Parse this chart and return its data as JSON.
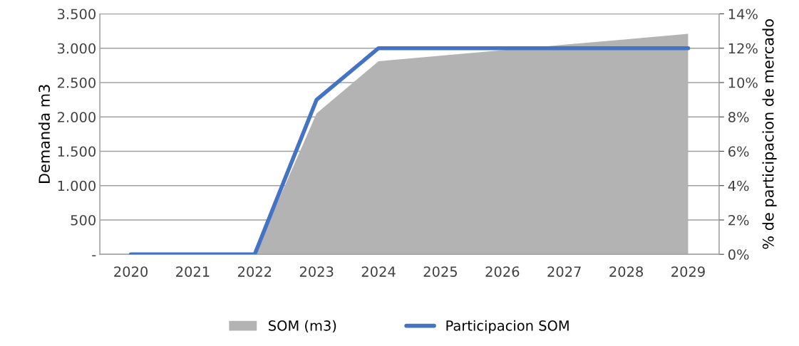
{
  "chart_data": {
    "type": "area",
    "categories": [
      "2020",
      "2021",
      "2022",
      "2023",
      "2024",
      "2025",
      "2026",
      "2027",
      "2028",
      "2029"
    ],
    "series": [
      {
        "name": "SOM (m3)",
        "color": "#b3b3b3",
        "values": [
          0,
          0,
          0,
          2050,
          2810,
          2890,
          2970,
          3050,
          3130,
          3210
        ]
      },
      {
        "name": "Participacion SOM",
        "type": "line",
        "axis": "y2",
        "color": "#4472c4",
        "values": [
          0,
          0,
          0,
          9,
          12,
          12,
          12,
          12,
          12,
          12
        ]
      }
    ],
    "ylabel": "Demanda m3",
    "y2label": "% de participacion de mercado",
    "ylim": [
      0,
      3500
    ],
    "yticks": [
      {
        "value": 0,
        "label": "-"
      },
      500,
      {
        "value": 1000,
        "label": "1.000"
      },
      {
        "value": 1500,
        "label": "1.500"
      },
      {
        "value": 2000,
        "label": "2.000"
      },
      {
        "value": 2500,
        "label": "2.500"
      },
      {
        "value": 3000,
        "label": "3.000"
      },
      {
        "value": 3500,
        "label": "3.500"
      }
    ],
    "y2lim": [
      0,
      14
    ],
    "y2ticks": [
      {
        "value": 0,
        "label": "0%"
      },
      {
        "value": 2,
        "label": "2%"
      },
      {
        "value": 4,
        "label": "4%"
      },
      {
        "value": 6,
        "label": "6%"
      },
      {
        "value": 8,
        "label": "8%"
      },
      {
        "value": 10,
        "label": "10%"
      },
      {
        "value": 12,
        "label": "12%"
      },
      {
        "value": 14,
        "label": "14%"
      }
    ],
    "grid": "y",
    "legend": "bottom"
  }
}
